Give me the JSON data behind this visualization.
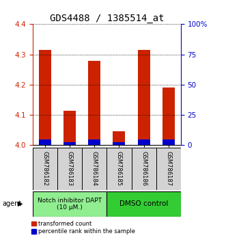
{
  "title": "GDS4488 / 1385514_at",
  "samples": [
    "GSM786182",
    "GSM786183",
    "GSM786184",
    "GSM786185",
    "GSM786186",
    "GSM786187"
  ],
  "red_values": [
    4.315,
    4.115,
    4.28,
    4.045,
    4.315,
    4.19
  ],
  "blue_values": [
    4.02,
    4.01,
    4.02,
    4.01,
    4.02,
    4.02
  ],
  "ylim": [
    4.0,
    4.4
  ],
  "yticks_left": [
    4.0,
    4.1,
    4.2,
    4.3,
    4.4
  ],
  "yticks_right": [
    0,
    25,
    50,
    75,
    100
  ],
  "ytick_labels_right": [
    "0",
    "25",
    "50",
    "75",
    "100%"
  ],
  "group1_label": "Notch inhibitor DAPT\n(10 μM.)",
  "group2_label": "DMSO control",
  "group1_indices": [
    0,
    1,
    2
  ],
  "group2_indices": [
    3,
    4,
    5
  ],
  "group1_color": "#90EE90",
  "group2_color": "#33cc33",
  "agent_label": "agent",
  "legend_red": "transformed count",
  "legend_blue": "percentile rank within the sample",
  "bar_width": 0.5,
  "background_color": "#ffffff",
  "tick_label_area_color": "#d3d3d3",
  "red_color": "#cc2200",
  "blue_color": "#0000cc",
  "title_fontsize": 10,
  "axis_fontsize": 7.5
}
